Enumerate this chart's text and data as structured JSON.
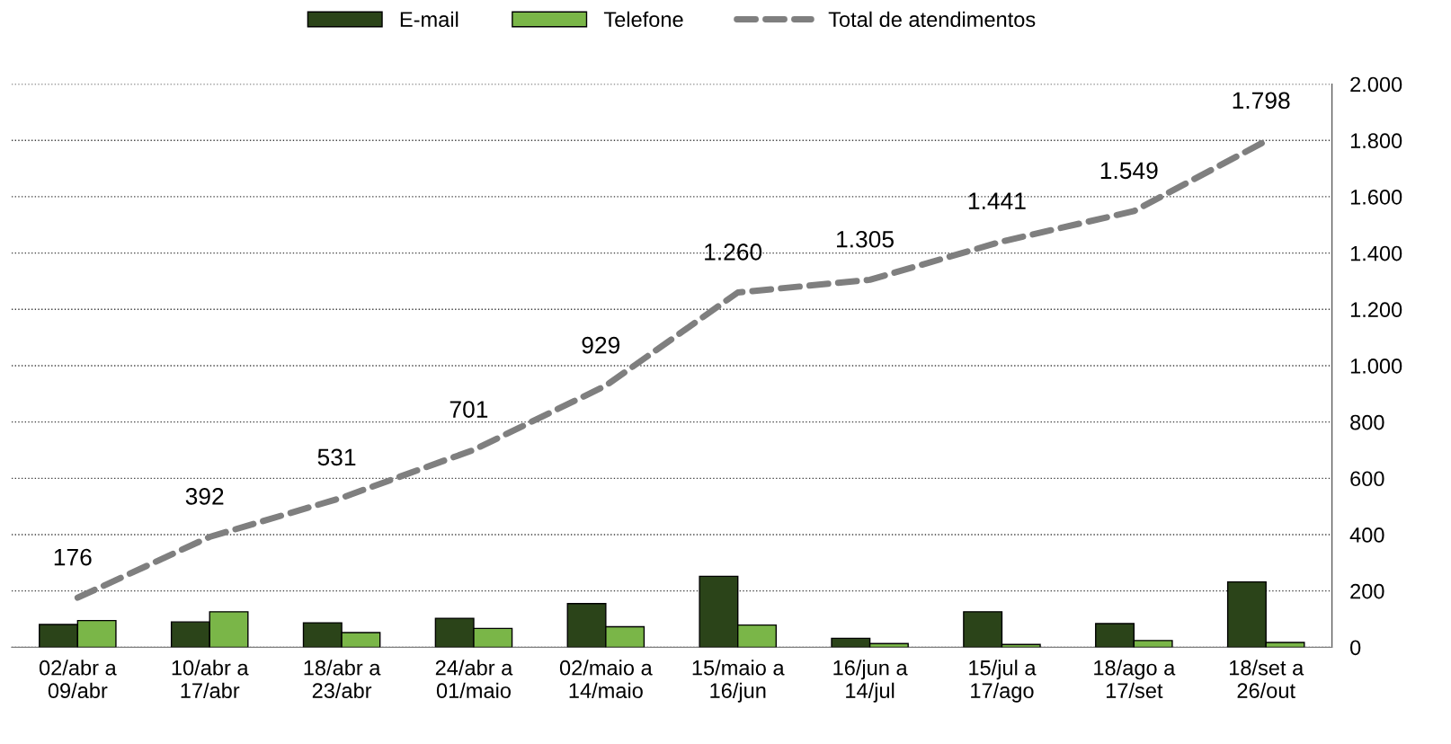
{
  "chart_data": {
    "type": "bar",
    "categories": [
      "02/abr a\n09/abr",
      "10/abr a\n17/abr",
      "18/abr a\n23/abr",
      "24/abr a\n01/maio",
      "02/maio a\n14/maio",
      "15/maio a\n16/jun",
      "16/jun a\n14/jul",
      "15/jul a\n17/ago",
      "18/ago a\n17/set",
      "18/set a\n26/out"
    ],
    "series": [
      {
        "name": "E-mail",
        "color": "#2b4419",
        "values": [
          81,
          90,
          87,
          103,
          155,
          252,
          32,
          126,
          84,
          232
        ]
      },
      {
        "name": "Telefone",
        "color": "#7ab648",
        "values": [
          95,
          126,
          52,
          67,
          73,
          79,
          13,
          10,
          24,
          17
        ]
      },
      {
        "name": "Total de atendimentos",
        "type": "line",
        "color": "#7f7f7f",
        "line_style": "dashed",
        "values": [
          176,
          392,
          531,
          701,
          929,
          1260,
          1305,
          1441,
          1549,
          1798
        ],
        "value_labels": [
          "176",
          "392",
          "531",
          "701",
          "929",
          "1.260",
          "1.305",
          "1.441",
          "1.549",
          "1.798"
        ]
      }
    ],
    "ylim": [
      0,
      2000
    ],
    "yticks": [
      0,
      200,
      400,
      600,
      800,
      {
        "value": 1000,
        "label": "1.000"
      },
      {
        "value": 1200,
        "label": "1.200"
      },
      {
        "value": 1400,
        "label": "1.400"
      },
      {
        "value": 1600,
        "label": "1.600"
      },
      {
        "value": 1800,
        "label": "1.800"
      },
      {
        "value": 2000,
        "label": "2.000"
      }
    ],
    "grid": "y",
    "legend": "top",
    "marker": "none"
  }
}
